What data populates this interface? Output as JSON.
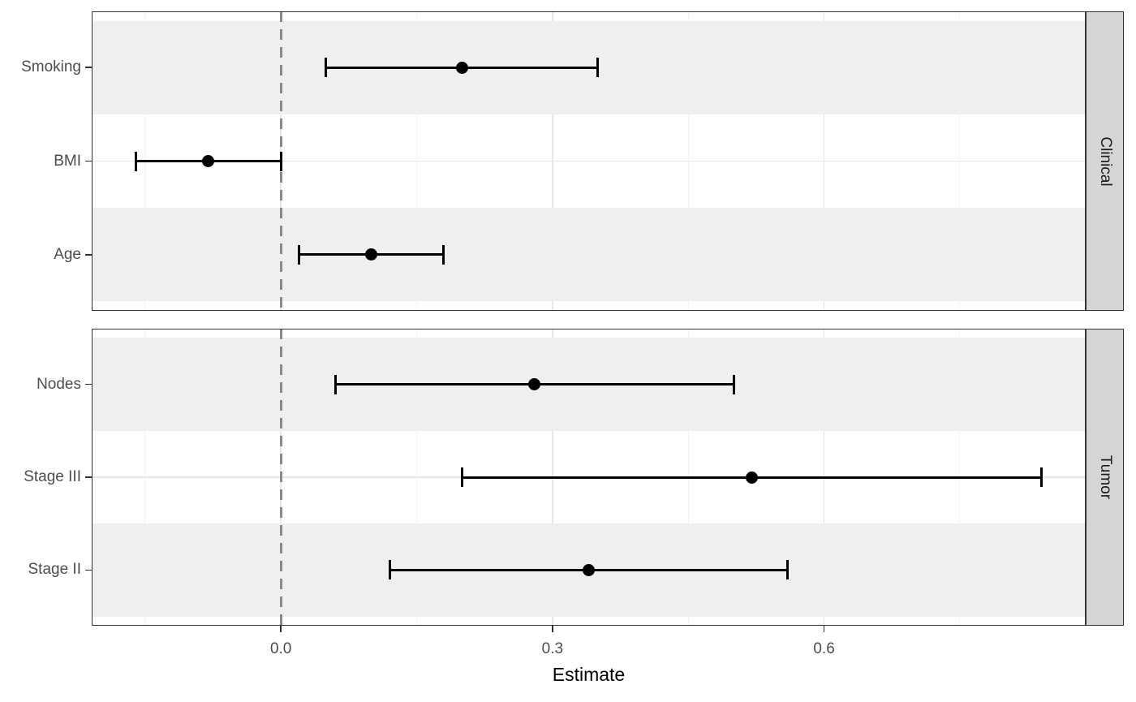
{
  "chart_data": {
    "type": "scatter",
    "subtype": "forest-pointrange",
    "title": "",
    "xlabel": "Estimate",
    "ylabel": "",
    "xlim": [
      -0.209,
      0.889
    ],
    "x_major_ticks": [
      0,
      0.3,
      0.6
    ],
    "x_tick_labels": [
      "0.0",
      "0.3",
      "0.6"
    ],
    "x_minor_ticks": [
      -0.15,
      0.15,
      0.45,
      0.75
    ],
    "reference_line_x": 0,
    "grid": "major+minor",
    "legend": "none",
    "facet_strip_position": "right",
    "facets": [
      {
        "label": "Clinical",
        "rows": [
          {
            "label": "Smoking",
            "estimate": 0.2,
            "ci_low": 0.05,
            "ci_high": 0.35
          },
          {
            "label": "BMI",
            "estimate": -0.08,
            "ci_low": -0.16,
            "ci_high": 0.0
          },
          {
            "label": "Age",
            "estimate": 0.1,
            "ci_low": 0.02,
            "ci_high": 0.18
          }
        ]
      },
      {
        "label": "Tumor",
        "rows": [
          {
            "label": "Nodes",
            "estimate": 0.28,
            "ci_low": 0.06,
            "ci_high": 0.5
          },
          {
            "label": "Stage III",
            "estimate": 0.52,
            "ci_low": 0.2,
            "ci_high": 0.84
          },
          {
            "label": "Stage II",
            "estimate": 0.34,
            "ci_low": 0.12,
            "ci_high": 0.56
          }
        ]
      }
    ],
    "colors": {
      "point": "#000000",
      "errorbar": "#000000",
      "band": "#efefef",
      "panel_bg": "#ffffff",
      "panel_border": "#333333",
      "strip_bg": "#d5d5d5",
      "strip_text": "#1a1a1a",
      "grid_major": "#e7e7e7",
      "grid_minor": "#f2f2f2",
      "reference_line": "#8a8a8a",
      "axis_text": "#4d4d4d",
      "axis_title": "#000000",
      "tick_mark": "#333333"
    }
  }
}
